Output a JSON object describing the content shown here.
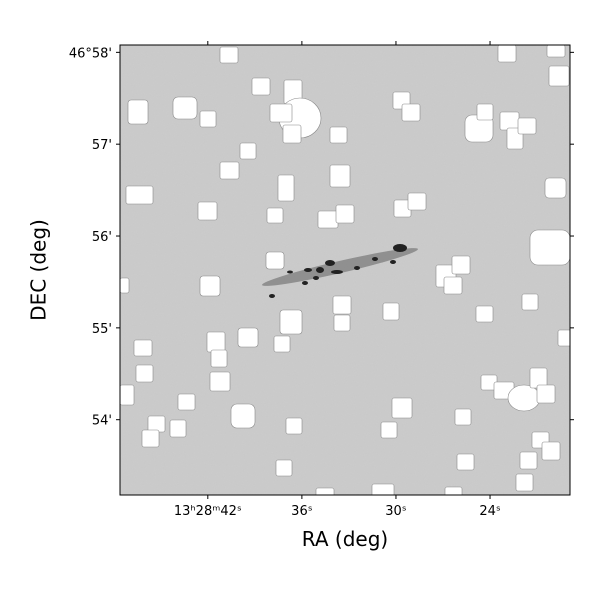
{
  "chart_data": {
    "type": "image",
    "xlabel": "RA (deg)",
    "ylabel": "DEC (deg)",
    "xlim": [
      47.6,
      18.9
    ],
    "ylim": [
      53.18,
      58.08
    ],
    "xticks": [
      {
        "value": 42,
        "label": "13ʰ28ᵐ42ˢ"
      },
      {
        "value": 36,
        "label": "36ˢ"
      },
      {
        "value": 30,
        "label": "30ˢ"
      },
      {
        "value": 24,
        "label": "24ˢ"
      }
    ],
    "yticks": [
      {
        "value": 58,
        "label": "46°58'"
      },
      {
        "value": 57,
        "label": "57'"
      },
      {
        "value": 56,
        "label": "56'"
      },
      {
        "value": 55,
        "label": "55'"
      },
      {
        "value": 54,
        "label": "54'"
      }
    ]
  }
}
